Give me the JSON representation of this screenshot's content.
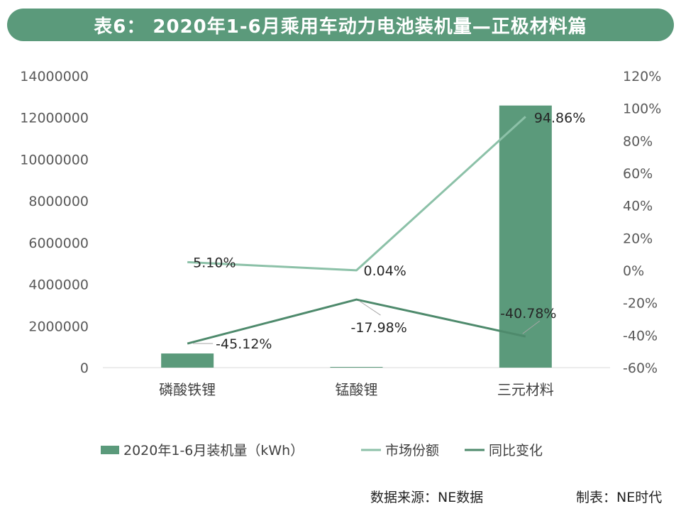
{
  "title": "表6：  2020年1-6月乘用车动力电池装机量—正极材料篇",
  "footer": {
    "source": "数据来源：NE数据",
    "maker": "制表：NE时代"
  },
  "colors": {
    "title_bg": "#5b9a7b",
    "bar": "#5b9a7b",
    "share_line": "#8cc1a8",
    "change_line": "#4e8a6c"
  },
  "chart_data": {
    "type": "bar",
    "categories": [
      "磷酸铁锂",
      "锰酸锂",
      "三元材料"
    ],
    "ylim": [
      0,
      14000000
    ],
    "yticks": [
      "0",
      "2000000",
      "4000000",
      "6000000",
      "8000000",
      "10000000",
      "12000000",
      "14000000"
    ],
    "y2lim": [
      -60,
      120
    ],
    "y2ticks": [
      "-60%",
      "-40%",
      "-20%",
      "0%",
      "20%",
      "40%",
      "60%",
      "80%",
      "100%",
      "120%"
    ],
    "series": [
      {
        "name": "2020年1-6月装机量（kWh）",
        "type": "bar",
        "axis": "left",
        "values": [
          680000,
          5000,
          12580000
        ]
      },
      {
        "name": "市场份额",
        "type": "line",
        "axis": "right",
        "values": [
          5.1,
          0.04,
          94.86
        ],
        "labels": [
          "5.10%",
          "0.04%",
          "94.86%"
        ]
      },
      {
        "name": "同比变化",
        "type": "line",
        "axis": "right",
        "values": [
          -45.12,
          -17.98,
          -40.78
        ],
        "labels": [
          "-45.12%",
          "-17.98%",
          "-40.78%"
        ]
      }
    ],
    "legend_position": "bottom"
  }
}
